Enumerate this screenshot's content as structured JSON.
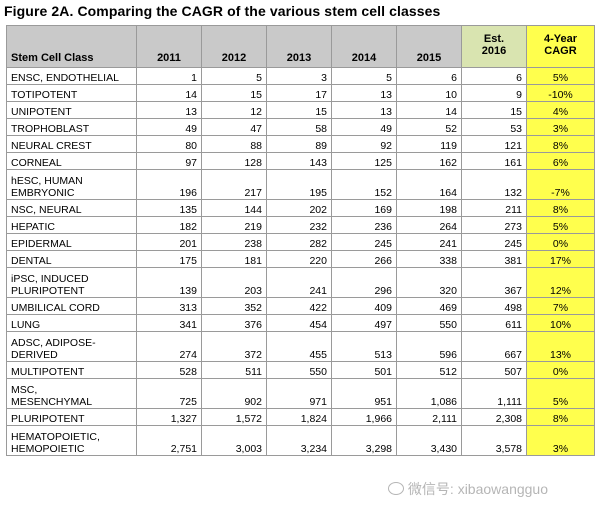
{
  "title": "Figure 2A. Comparing the CAGR of the various stem cell classes",
  "headers": [
    "Stem Cell Class",
    "2011",
    "2012",
    "2013",
    "2014",
    "2015",
    "Est.\n2016",
    "4-Year\nCAGR"
  ],
  "rows": [
    {
      "name": "ENSC, ENDOTHELIAL",
      "values": [
        "1",
        "5",
        "3",
        "5",
        "6",
        "6"
      ],
      "cagr": "5%"
    },
    {
      "name": "TOTIPOTENT",
      "values": [
        "14",
        "15",
        "17",
        "13",
        "10",
        "9"
      ],
      "cagr": "-10%"
    },
    {
      "name": "UNIPOTENT",
      "values": [
        "13",
        "12",
        "15",
        "13",
        "14",
        "15"
      ],
      "cagr": "4%"
    },
    {
      "name": "TROPHOBLAST",
      "values": [
        "49",
        "47",
        "58",
        "49",
        "52",
        "53"
      ],
      "cagr": "3%"
    },
    {
      "name": "NEURAL CREST",
      "values": [
        "80",
        "88",
        "89",
        "92",
        "119",
        "121"
      ],
      "cagr": "8%"
    },
    {
      "name": "CORNEAL",
      "values": [
        "97",
        "128",
        "143",
        "125",
        "162",
        "161"
      ],
      "cagr": "6%"
    },
    {
      "name": "hESC, HUMAN\nEMBRYONIC",
      "values": [
        "196",
        "217",
        "195",
        "152",
        "164",
        "132"
      ],
      "cagr": "-7%",
      "tall": true
    },
    {
      "name": "NSC, NEURAL",
      "values": [
        "135",
        "144",
        "202",
        "169",
        "198",
        "211"
      ],
      "cagr": "8%"
    },
    {
      "name": "HEPATIC",
      "values": [
        "182",
        "219",
        "232",
        "236",
        "264",
        "273"
      ],
      "cagr": "5%"
    },
    {
      "name": "EPIDERMAL",
      "values": [
        "201",
        "238",
        "282",
        "245",
        "241",
        "245"
      ],
      "cagr": "0%"
    },
    {
      "name": "DENTAL",
      "values": [
        "175",
        "181",
        "220",
        "266",
        "338",
        "381"
      ],
      "cagr": "17%"
    },
    {
      "name": "iPSC, INDUCED\nPLURIPOTENT",
      "values": [
        "139",
        "203",
        "241",
        "296",
        "320",
        "367"
      ],
      "cagr": "12%",
      "tall": true
    },
    {
      "name": "UMBILICAL CORD",
      "values": [
        "313",
        "352",
        "422",
        "409",
        "469",
        "498"
      ],
      "cagr": "7%"
    },
    {
      "name": "LUNG",
      "values": [
        "341",
        "376",
        "454",
        "497",
        "550",
        "611"
      ],
      "cagr": "10%"
    },
    {
      "name": "ADSC, ADIPOSE-\nDERIVED",
      "values": [
        "274",
        "372",
        "455",
        "513",
        "596",
        "667"
      ],
      "cagr": "13%",
      "tall": true
    },
    {
      "name": "MULTIPOTENT",
      "values": [
        "528",
        "511",
        "550",
        "501",
        "512",
        "507"
      ],
      "cagr": "0%"
    },
    {
      "name": "MSC,\nMESENCHYMAL",
      "values": [
        "725",
        "902",
        "971",
        "951",
        "1,086",
        "1,111"
      ],
      "cagr": "5%",
      "tall": true
    },
    {
      "name": "PLURIPOTENT",
      "values": [
        "1,327",
        "1,572",
        "1,824",
        "1,966",
        "2,111",
        "2,308"
      ],
      "cagr": "8%"
    },
    {
      "name": "HEMATOPOIETIC,\nHEMOPOIETIC",
      "values": [
        "2,751",
        "3,003",
        "3,234",
        "3,298",
        "3,430",
        "3,578"
      ],
      "cagr": "3%",
      "tall": true
    }
  ],
  "watermark": "微信号: xibaowangguo",
  "colors": {
    "header": "#c9c9c9",
    "est_header": "#d9e4b0",
    "cagr": "#ffff4d"
  }
}
